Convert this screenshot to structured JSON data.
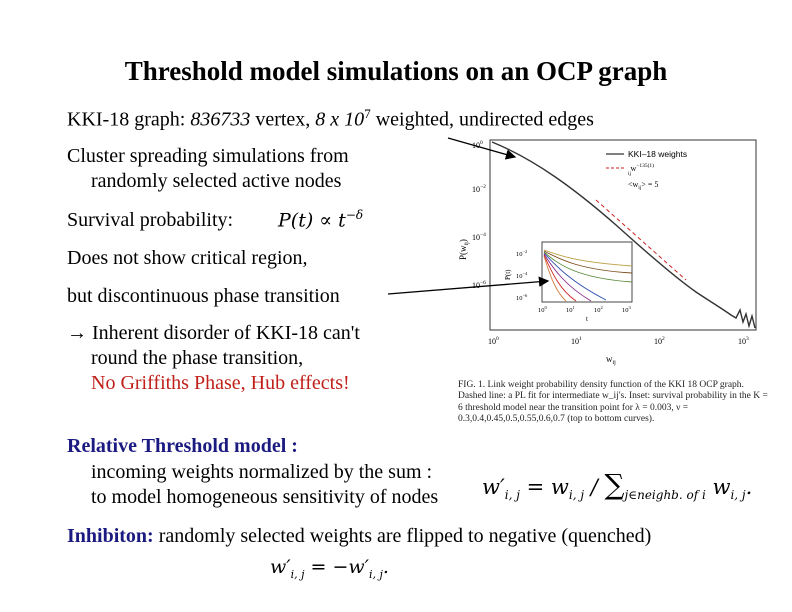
{
  "title": "Threshold model simulations on an OCP graph",
  "graph_line": {
    "prefix": "KKI-18 graph: ",
    "vertices": "836733",
    "vertex_word": " vertex, ",
    "edges_base": "8 x 10",
    "edges_exp": "7",
    "suffix": " weighted, undirected edges"
  },
  "bullets": {
    "cluster_1": "Cluster spreading simulations from",
    "cluster_2": "randomly selected active nodes",
    "survival": "Survival probability:",
    "critical": "Does not show critical region,",
    "discontinuous": "but discontinuous phase transition",
    "arrow": "→",
    "inherent_1": " Inherent disorder of KKI-18 can't",
    "inherent_2": "round the phase transition,",
    "griffiths": "No Griffiths Phase, Hub effects!",
    "relative_title": "Relative Threshold model :",
    "relative_1": "incoming weights normalized by the sum :",
    "relative_2": "to model homogeneous sensitivity of nodes",
    "inhibiton_label": "Inhibiton:",
    "inhibiton_text": " randomly selected  weights are flipped to negative (quenched)"
  },
  "formulas": {
    "survival": "P(t) ∝ t",
    "survival_exp": "−δ",
    "norm_lhs": "w′",
    "norm_lhs_sub": "i, j",
    "norm_mid": " = w",
    "norm_mid_sub": "i, j",
    "norm_div": " / ",
    "norm_sum": "∑",
    "norm_sum_sub": "j∈neighb. of i",
    "norm_rhs": " w",
    "norm_rhs_sub": "i, j",
    "norm_end": ".",
    "inhib_lhs": "w′",
    "inhib_lhs_sub": "i, j",
    "inhib_eq": " = −w′",
    "inhib_rhs_sub": "i, j",
    "inhib_end": "."
  },
  "figure": {
    "y_axis_label": "P(w",
    "y_axis_sub": "ij",
    "y_axis_close": ")",
    "x_axis_label": "w",
    "x_axis_sub": "ij",
    "y_ticks": [
      "10",
      "10",
      "10",
      "10"
    ],
    "y_exps": [
      "0",
      "−2",
      "−4",
      "−6"
    ],
    "x_ticks": [
      "10",
      "10",
      "10",
      "10"
    ],
    "x_exps": [
      "0",
      "1",
      "2",
      "3"
    ],
    "legend_title": "KKI–18 weights",
    "legend_fit": "w",
    "legend_fit_sup": "−135(1)",
    "legend_fit_sub": "ij",
    "legend_mean": "<w",
    "legend_mean_sub": "ij",
    "legend_mean_rest": "> = 5",
    "inset_ylabel": "P(t)",
    "inset_xlabel": "t",
    "inset_y_ticks": [
      "10",
      "10",
      "10"
    ],
    "inset_y_exps": [
      "−2",
      "−4",
      "−6"
    ],
    "inset_x_ticks": [
      "10",
      "10",
      "10",
      "10"
    ],
    "inset_x_exps": [
      "0",
      "1",
      "2",
      "3"
    ],
    "caption": "FIG. 1. Link weight probability density function of the KKI 18 OCP graph. Dashed line: a PL fit for intermediate w_ij's. Inset: survival probability in the K = 6 threshold model near the transition point for λ = 0.003, ν = 0.3,0.4,0.45,0.5,0.55,0.6,0.7 (top to bottom curves).",
    "colors": {
      "main": "#333333",
      "fit": "#cc2222",
      "inset": [
        "#b8a040",
        "#7a4a18",
        "#5a8a3a",
        "#3050b0",
        "#8a2a8a",
        "#d02020",
        "#d08040"
      ]
    }
  }
}
